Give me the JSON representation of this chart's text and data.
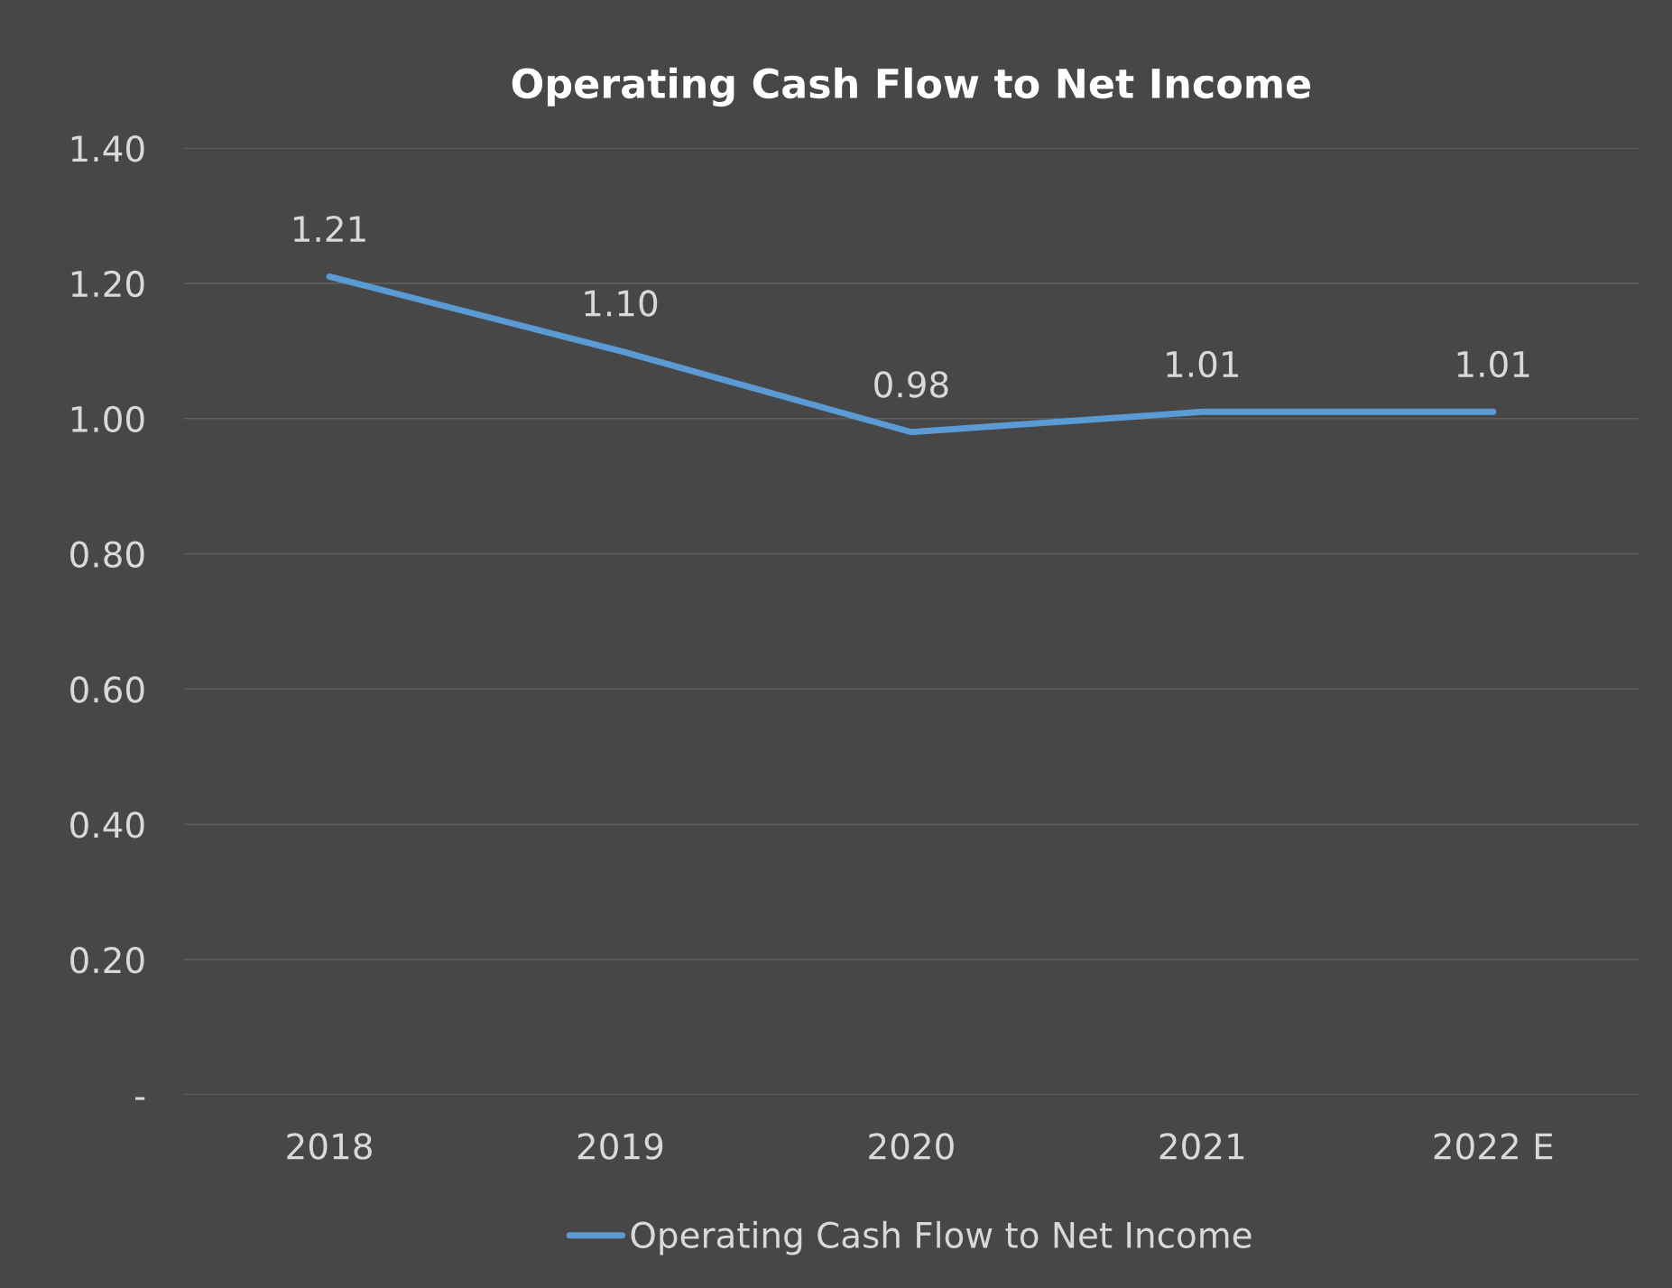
{
  "chart_data": {
    "type": "line",
    "title": "Operating Cash Flow to Net Income",
    "categories": [
      "2018",
      "2019",
      "2020",
      "2021",
      "2022 E"
    ],
    "series": [
      {
        "name": "Operating Cash Flow to Net Income",
        "color": "#5b9bd5",
        "values": [
          1.21,
          1.1,
          0.98,
          1.01,
          1.01
        ],
        "value_labels": [
          "1.21",
          "1.10",
          "0.98",
          "1.01",
          "1.01"
        ]
      }
    ],
    "ylim": [
      0,
      1.4
    ],
    "yticks": [
      {
        "value": 0,
        "label": "-"
      },
      {
        "value": 0.2,
        "label": "0.20"
      },
      {
        "value": 0.4,
        "label": "0.40"
      },
      {
        "value": 0.6,
        "label": "0.60"
      },
      {
        "value": 0.8,
        "label": "0.80"
      },
      {
        "value": 1.0,
        "label": "1.00"
      },
      {
        "value": 1.2,
        "label": "1.20"
      },
      {
        "value": 1.4,
        "label": "1.40"
      }
    ],
    "grid": "y",
    "legend": "bottom",
    "marker": "none",
    "line_style": "solid"
  }
}
